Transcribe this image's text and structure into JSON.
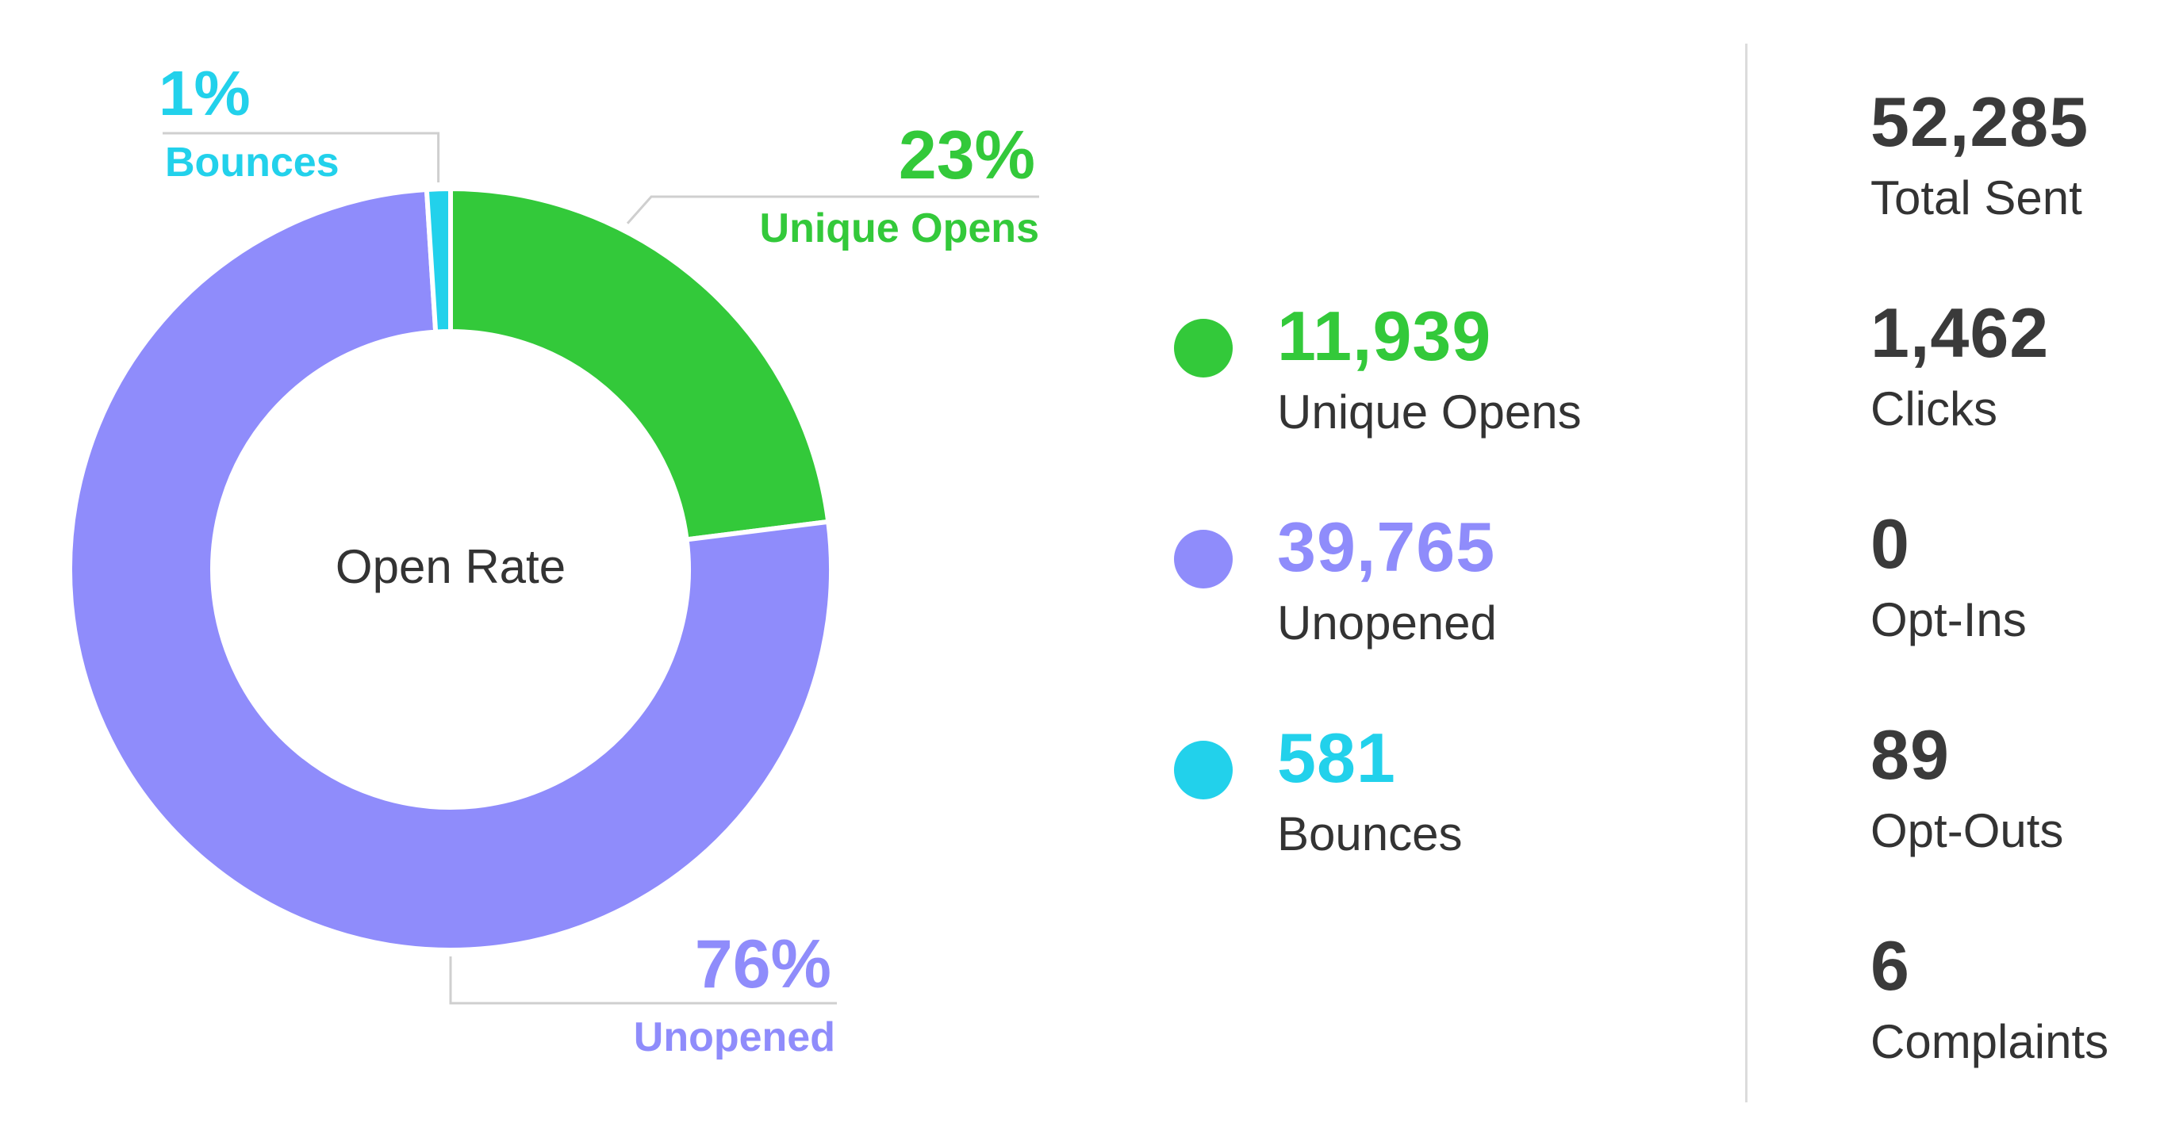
{
  "chart_data": {
    "type": "pie",
    "center_label": "Open Rate",
    "slices": [
      {
        "name": "Unique Opens",
        "value": 23,
        "pct_label": "23%",
        "color": "#33c93a"
      },
      {
        "name": "Unopened",
        "value": 76,
        "pct_label": "76%",
        "color": "#8f8cfb"
      },
      {
        "name": "Bounces",
        "value": 1,
        "pct_label": "1%",
        "color": "#22d1eb"
      }
    ]
  },
  "legend": [
    {
      "value": "11,939",
      "label": "Unique Opens",
      "color": "#33c93a"
    },
    {
      "value": "39,765",
      "label": "Unopened",
      "color": "#8f8cfb"
    },
    {
      "value": "581",
      "label": "Bounces",
      "color": "#22d1eb"
    }
  ],
  "stats": [
    {
      "value": "52,285",
      "label": "Total Sent"
    },
    {
      "value": "1,462",
      "label": "Clicks"
    },
    {
      "value": "0",
      "label": "Opt-Ins"
    },
    {
      "value": "89",
      "label": "Opt-Outs"
    },
    {
      "value": "6",
      "label": "Complaints"
    }
  ]
}
